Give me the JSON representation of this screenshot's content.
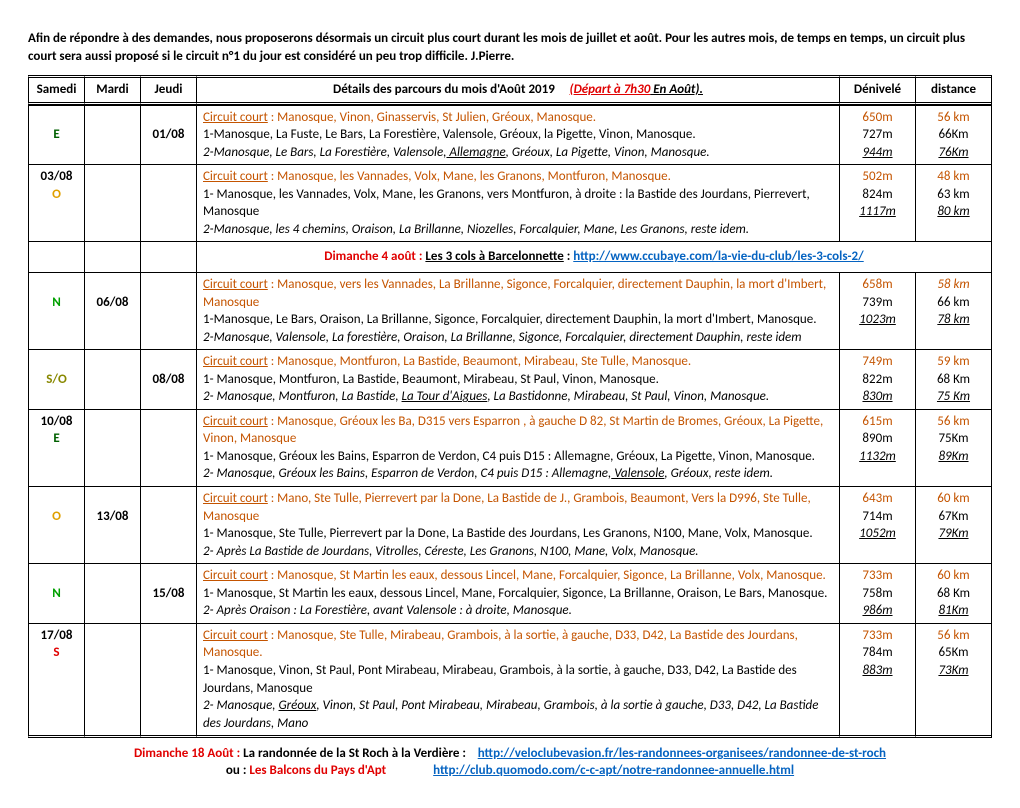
{
  "intro": "Afin de répondre à des demandes, nous proposerons désormais  un circuit plus court durant les mois de juillet et août. Pour les autres mois, de temps en temps, un circuit plus court sera aussi proposé si le circuit n°1 du jour est considéré un peu trop difficile. J.Pierre.",
  "headers": {
    "samedi": "Samedi",
    "mardi": "Mardi",
    "jeudi": "Jeudi",
    "denivele": "Dénivelé",
    "distance": "distance",
    "details_pre": "Détails des parcours du mois d'Août 2019",
    "details_dep": "(Départ à 7h30",
    "details_suf": " En Août)."
  },
  "rows": [
    {
      "samedi": "",
      "samedi_wind": "E",
      "mardi": "",
      "jeudi": "01/08",
      "lines": [
        {
          "kind": "cc",
          "text": "Circuit court : Manosque, Vinon, Ginasservis, St Julien, Gréoux, Manosque.",
          "den": "650m",
          "dist": "56 km"
        },
        {
          "kind": "n",
          "text": "1-Manosque, La Fuste, Le Bars, La Forestière, Valensole, Gréoux, la Pigette, Vinon, Manosque.",
          "den": "727m",
          "dist": "66Km"
        },
        {
          "kind": "i",
          "pre": "2-Manosque, Le Bars, La Forestière, Valensole,",
          "u": " Allemagne",
          "post": ", Gréoux, La Pigette, Vinon,  Manosque.",
          "den": "944m",
          "dist": "76Km"
        }
      ]
    },
    {
      "samedi": "03/08",
      "samedi_wind": "O",
      "mardi": "",
      "jeudi": "",
      "lines": [
        {
          "kind": "cc",
          "text": "Circuit court : Manosque, les Vannades, Volx, Mane, les Granons, Montfuron, Manosque.",
          "den": "502m",
          "dist": "48 km"
        },
        {
          "kind": "n",
          "text": "1- Manosque, les Vannades, Volx, Mane, les Granons, vers Montfuron, à droite : la Bastide des Jourdans, Pierrevert, Manosque",
          "den": "824m",
          "dist": "63 km"
        },
        {
          "kind": "i",
          "pre": "2-Manosque, les 4 chemins, Oraison, La Brillanne, Niozelles, Forcalquier, Mane, Les Granons, reste idem.",
          "u": "",
          "post": "",
          "den": "1117m",
          "dist": "80 km"
        }
      ]
    },
    {
      "headline": {
        "pre": "Dimanche 4 août : ",
        "mid": "Les 3 cols à Barcelonnette",
        ":": " :   ",
        "url": "http://www.ccubaye.com/la-vie-du-club/les-3-cols-2/"
      }
    },
    {
      "samedi": "",
      "samedi_wind": "N",
      "mardi": "06/08",
      "jeudi": "",
      "lines": [
        {
          "kind": "cc",
          "text": "Circuit court : Manosque, vers les Vannades, La Brillanne, Sigonce, Forcalquier, directement Dauphin, la mort d'Imbert, Manosque",
          "den": "658m",
          "dist": "58 km",
          "dist_it": true
        },
        {
          "kind": "n",
          "text": "1-Manosque, Le Bars, Oraison, La Brillanne, Sigonce, Forcalquier, directement Dauphin, la mort d'Imbert, Manosque.",
          "den": "739m",
          "dist": "66 km"
        },
        {
          "kind": "i",
          "pre": "2-Manosque, Valensole, La forestière, Oraison, La Brillanne, Sigonce, Forcalquier, directement Dauphin, reste idem",
          "u": "",
          "post": "",
          "den": "1023m",
          "dist": "78 km"
        }
      ]
    },
    {
      "samedi": "",
      "samedi_wind": "S/O",
      "mardi": "",
      "jeudi": "08/08",
      "lines": [
        {
          "kind": "cc",
          "text": "Circuit court : Manosque, Montfuron, La Bastide, Beaumont, Mirabeau, Ste Tulle, Manosque.",
          "den": "749m",
          "dist": "59 km"
        },
        {
          "kind": "n",
          "text": "1- Manosque, Montfuron, La Bastide, Beaumont, Mirabeau, St Paul, Vinon, Manosque.",
          "den": "822m",
          "dist": "68 Km"
        },
        {
          "kind": "i",
          "pre": "2- Manosque, Montfuron, La Bastide, ",
          "u": "La Tour d'Aigues",
          "post": ", La Bastidonne, Mirabeau, St Paul, Vinon, Manosque.",
          "den": "830m",
          "dist": "75 Km"
        }
      ]
    },
    {
      "samedi": "10/08",
      "samedi_wind": "E",
      "mardi": "",
      "jeudi": "",
      "lines": [
        {
          "kind": "cc",
          "text": "Circuit court : Manosque, Gréoux les Ba, D315 vers Esparron , à gauche D 82, St Martin de Bromes,  Gréoux, La Pigette, Vinon, Manosque",
          "den": "615m",
          "dist": "56 km"
        },
        {
          "kind": "n",
          "text": " 1- Manosque, Gréoux les Bains, Esparron de Verdon, C4  puis D15 : Allemagne, Gréoux, La Pigette, Vinon, Manosque.",
          "den": "890m",
          "dist": "75Km"
        },
        {
          "kind": "i",
          "pre": " 2- Manosque, Gréoux les Bains, Esparron de Verdon, C4  puis D15 : Allemagne,",
          "u": " Valensole",
          "post": ", Gréoux, reste idem.",
          "den": "1132m",
          "dist": "89Km"
        }
      ]
    },
    {
      "samedi": "",
      "samedi_wind": "O",
      "mardi": "13/08",
      "jeudi": "",
      "lines": [
        {
          "kind": "cc",
          "text": "Circuit court : Mano, Ste Tulle, Pierrevert par la Done, La Bastide de J., Grambois,  Beaumont, Vers la D996, Ste Tulle, Manosque",
          "den": "643m",
          "dist": "60 km"
        },
        {
          "kind": "n",
          "text": "1- Manosque, Ste Tulle, Pierrevert par la Done, La Bastide des Jourdans, Les Granons, N100, Mane, Volx, Manosque.",
          "den": "714m",
          "dist": "67Km"
        },
        {
          "kind": "i",
          "pre": "2- Après La Bastide de Jourdans, Vitrolles, Céreste, Les Granons, N100, Mane, Volx, Manosque.",
          "u": "",
          "post": "",
          "den": "1052m",
          "dist": "79Km"
        }
      ]
    },
    {
      "samedi": "",
      "samedi_wind": "N",
      "mardi": "",
      "jeudi": "15/08",
      "lines": [
        {
          "kind": "cc",
          "text": "Circuit court : Manosque, St Martin les eaux, dessous Lincel, Mane, Forcalquier, Sigonce, La Brillanne, Volx, Manosque.",
          "den": "733m",
          "dist": "60 km"
        },
        {
          "kind": "n",
          "text": "1- Manosque, St Martin les eaux, dessous Lincel, Mane, Forcalquier, Sigonce, La Brillanne, Oraison, Le Bars, Manosque.",
          "den": "758m",
          "dist": "68 Km"
        },
        {
          "kind": "i",
          "pre": "2- Après Oraison : La Forestière, avant Valensole : à droite, Manosque.",
          "u": "",
          "post": "",
          "den": "986m",
          "dist": "81Km"
        }
      ]
    },
    {
      "samedi": "17/08",
      "samedi_wind": "S",
      "mardi": "",
      "jeudi": "",
      "lines": [
        {
          "kind": "cc",
          "text": "Circuit court : Manosque, Ste Tulle, Mirabeau, Grambois, à la sortie, à gauche, D33, D42, La Bastide des Jourdans, Manosque.",
          "den": "733m",
          "dist": "56 km"
        },
        {
          "kind": "n",
          "text": " 1- Manosque, Vinon, St Paul, Pont Mirabeau, Mirabeau, Grambois, à la sortie, à gauche, D33, D42, La Bastide des Jourdans, Manosque",
          "den": "784m",
          "dist": "65Km"
        },
        {
          "kind": "i",
          "pre": " 2- Manosque, ",
          "u": "Gréoux",
          "post": ", Vinon, St Paul, Pont Mirabeau, Mirabeau, Grambois, à la sortie à gauche, D33, D42, La Bastide des Jourdans, Mano",
          "den": "883m",
          "dist": "73Km"
        }
      ]
    }
  ],
  "footer": {
    "line1": {
      "pre": "Dimanche 18 Août : ",
      "mid": "La randonnée de la St Roch à la Verdière :",
      "url": "http://veloclubevasion.fr/les-randonnees-organisees/randonnee-de-st-roch"
    },
    "line2": {
      "pre": "ou : ",
      "mid": "Les Balcons du Pays d'Apt",
      "url": "http://club.quomodo.com/c-c-apt/notre-randonnee-annuelle.html"
    }
  }
}
